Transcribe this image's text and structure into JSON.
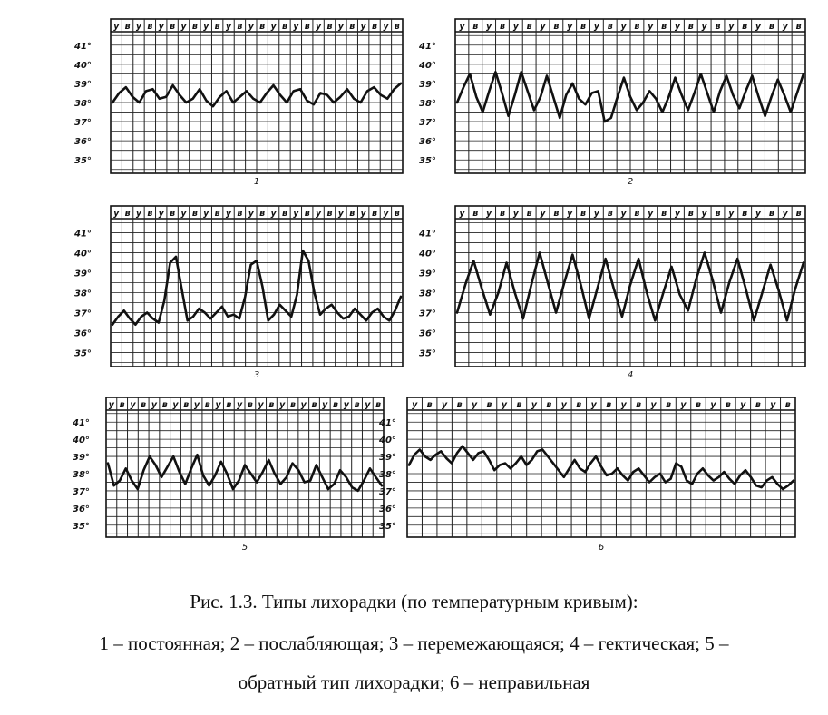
{
  "colors": {
    "ink": "#111111",
    "grid": "#222222",
    "paper": "#ffffff"
  },
  "y_axis_labels": [
    "41°",
    "40°",
    "39°",
    "38°",
    "37°",
    "36°",
    "35°"
  ],
  "chart_data": [
    {
      "type": "line",
      "panel_label": "1",
      "ylim": [
        34.3,
        41.7
      ],
      "top_row": [
        "у",
        "в",
        "у",
        "в",
        "у",
        "в",
        "у",
        "в",
        "у",
        "в",
        "у",
        "в",
        "у",
        "в",
        "у",
        "в",
        "у",
        "в",
        "у",
        "в",
        "у",
        "в",
        "у",
        "в",
        "у",
        "в"
      ],
      "values": [
        38.0,
        38.5,
        38.8,
        38.3,
        38.0,
        38.6,
        38.7,
        38.2,
        38.3,
        38.9,
        38.4,
        38.0,
        38.2,
        38.7,
        38.1,
        37.8,
        38.3,
        38.6,
        38.0,
        38.3,
        38.6,
        38.2,
        38.0,
        38.5,
        38.9,
        38.4,
        38.0,
        38.6,
        38.7,
        38.1,
        37.9,
        38.5,
        38.4,
        38.0,
        38.3,
        38.7,
        38.2,
        38.0,
        38.6,
        38.8,
        38.4,
        38.2,
        38.7,
        39.0
      ]
    },
    {
      "type": "line",
      "panel_label": "2",
      "ylim": [
        34.3,
        41.7
      ],
      "top_row": [
        "у",
        "в",
        "у",
        "в",
        "у",
        "в",
        "у",
        "в",
        "у",
        "в",
        "у",
        "в",
        "у",
        "в",
        "у",
        "в",
        "у",
        "в",
        "у",
        "в",
        "у",
        "в",
        "у",
        "в",
        "у",
        "в"
      ],
      "values": [
        38.0,
        38.8,
        39.5,
        38.3,
        37.5,
        38.6,
        39.6,
        38.5,
        37.3,
        38.4,
        39.6,
        38.6,
        37.6,
        38.3,
        39.4,
        38.3,
        37.2,
        38.4,
        39.0,
        38.2,
        37.9,
        38.5,
        38.6,
        37.0,
        37.2,
        38.3,
        39.3,
        38.3,
        37.6,
        38.0,
        38.6,
        38.2,
        37.5,
        38.3,
        39.3,
        38.4,
        37.6,
        38.5,
        39.5,
        38.5,
        37.5,
        38.6,
        39.4,
        38.4,
        37.7,
        38.6,
        39.4,
        38.3,
        37.3,
        38.3,
        39.2,
        38.4,
        37.5,
        38.5,
        39.5
      ]
    },
    {
      "type": "line",
      "panel_label": "3",
      "ylim": [
        34.3,
        41.7
      ],
      "top_row": [
        "у",
        "в",
        "у",
        "в",
        "у",
        "в",
        "у",
        "в",
        "у",
        "в",
        "у",
        "в",
        "у",
        "в",
        "у",
        "в",
        "у",
        "в",
        "у",
        "в",
        "у",
        "в",
        "у",
        "в",
        "у",
        "в"
      ],
      "values": [
        36.4,
        36.8,
        37.1,
        36.7,
        36.4,
        36.8,
        37.0,
        36.7,
        36.5,
        37.6,
        39.5,
        39.8,
        38.2,
        36.6,
        36.8,
        37.2,
        37.0,
        36.7,
        37.0,
        37.3,
        36.8,
        36.9,
        36.7,
        37.8,
        39.4,
        39.6,
        38.3,
        36.6,
        36.9,
        37.4,
        37.1,
        36.8,
        37.9,
        40.1,
        39.6,
        38.0,
        36.9,
        37.2,
        37.4,
        37.0,
        36.7,
        36.8,
        37.2,
        36.9,
        36.6,
        37.0,
        37.2,
        36.8,
        36.6,
        37.1,
        37.8
      ]
    },
    {
      "type": "line",
      "panel_label": "4",
      "ylim": [
        34.3,
        41.7
      ],
      "top_row": [
        "у",
        "в",
        "у",
        "в",
        "у",
        "в",
        "у",
        "в",
        "у",
        "в",
        "у",
        "в",
        "у",
        "в",
        "у",
        "в",
        "у",
        "в",
        "у",
        "в",
        "у",
        "в",
        "у",
        "в",
        "у",
        "в"
      ],
      "values": [
        37.0,
        38.4,
        39.6,
        38.2,
        36.9,
        38.0,
        39.5,
        38.0,
        36.7,
        38.4,
        40.0,
        38.5,
        37.0,
        38.5,
        39.9,
        38.4,
        36.7,
        38.2,
        39.7,
        38.2,
        36.8,
        38.4,
        39.7,
        38.0,
        36.6,
        38.0,
        39.3,
        37.9,
        37.1,
        38.7,
        40.0,
        38.6,
        37.0,
        38.5,
        39.7,
        38.2,
        36.6,
        38.0,
        39.4,
        38.1,
        36.6,
        38.2,
        39.5
      ]
    },
    {
      "type": "line",
      "panel_label": "5",
      "ylim": [
        34.3,
        41.7
      ],
      "top_row": [
        "у",
        "в",
        "у",
        "в",
        "у",
        "в",
        "у",
        "в",
        "у",
        "в",
        "у",
        "в",
        "у",
        "в",
        "у",
        "в",
        "у",
        "в",
        "у",
        "в",
        "у",
        "в",
        "у",
        "в",
        "у",
        "в"
      ],
      "values": [
        38.6,
        37.3,
        37.6,
        38.3,
        37.6,
        37.1,
        38.2,
        39.0,
        38.5,
        37.8,
        38.4,
        39.0,
        38.1,
        37.4,
        38.3,
        39.1,
        37.9,
        37.3,
        37.9,
        38.7,
        38.0,
        37.1,
        37.6,
        38.5,
        38.0,
        37.5,
        38.1,
        38.8,
        38.0,
        37.4,
        37.8,
        38.6,
        38.2,
        37.5,
        37.6,
        38.5,
        37.8,
        37.1,
        37.4,
        38.2,
        37.8,
        37.2,
        37.0,
        37.6,
        38.3,
        37.8,
        37.3
      ]
    },
    {
      "type": "line",
      "panel_label": "6",
      "ylim": [
        34.3,
        41.7
      ],
      "top_row": [
        "у",
        "в",
        "у",
        "в",
        "у",
        "в",
        "у",
        "в",
        "у",
        "в",
        "у",
        "в",
        "у",
        "в",
        "у",
        "в",
        "у",
        "в",
        "у",
        "в",
        "у",
        "в",
        "у",
        "в",
        "у",
        "в"
      ],
      "values": [
        38.5,
        39.1,
        39.4,
        39.0,
        38.8,
        39.1,
        39.3,
        38.9,
        38.6,
        39.2,
        39.6,
        39.2,
        38.8,
        39.2,
        39.3,
        38.8,
        38.2,
        38.5,
        38.6,
        38.3,
        38.6,
        39.0,
        38.5,
        38.8,
        39.3,
        39.4,
        39.0,
        38.6,
        38.2,
        37.8,
        38.3,
        38.8,
        38.3,
        38.1,
        38.6,
        39.0,
        38.4,
        37.9,
        38.0,
        38.3,
        37.9,
        37.6,
        38.1,
        38.3,
        37.9,
        37.5,
        37.8,
        38.0,
        37.5,
        37.7,
        38.6,
        38.4,
        37.6,
        37.4,
        38.0,
        38.3,
        37.9,
        37.6,
        37.8,
        38.1,
        37.7,
        37.4,
        37.9,
        38.2,
        37.8,
        37.3,
        37.2,
        37.6,
        37.8,
        37.4,
        37.1,
        37.3,
        37.6
      ]
    }
  ],
  "caption": {
    "line1": "Рис. 1.3. Типы лихорадки (по температурным кривым):",
    "line2": "1 – постоянная; 2 – послабляющая; 3 – перемежающаяся; 4 – гектическая; 5 –",
    "line3": "обратный тип лихорадки; 6 – неправильная"
  }
}
